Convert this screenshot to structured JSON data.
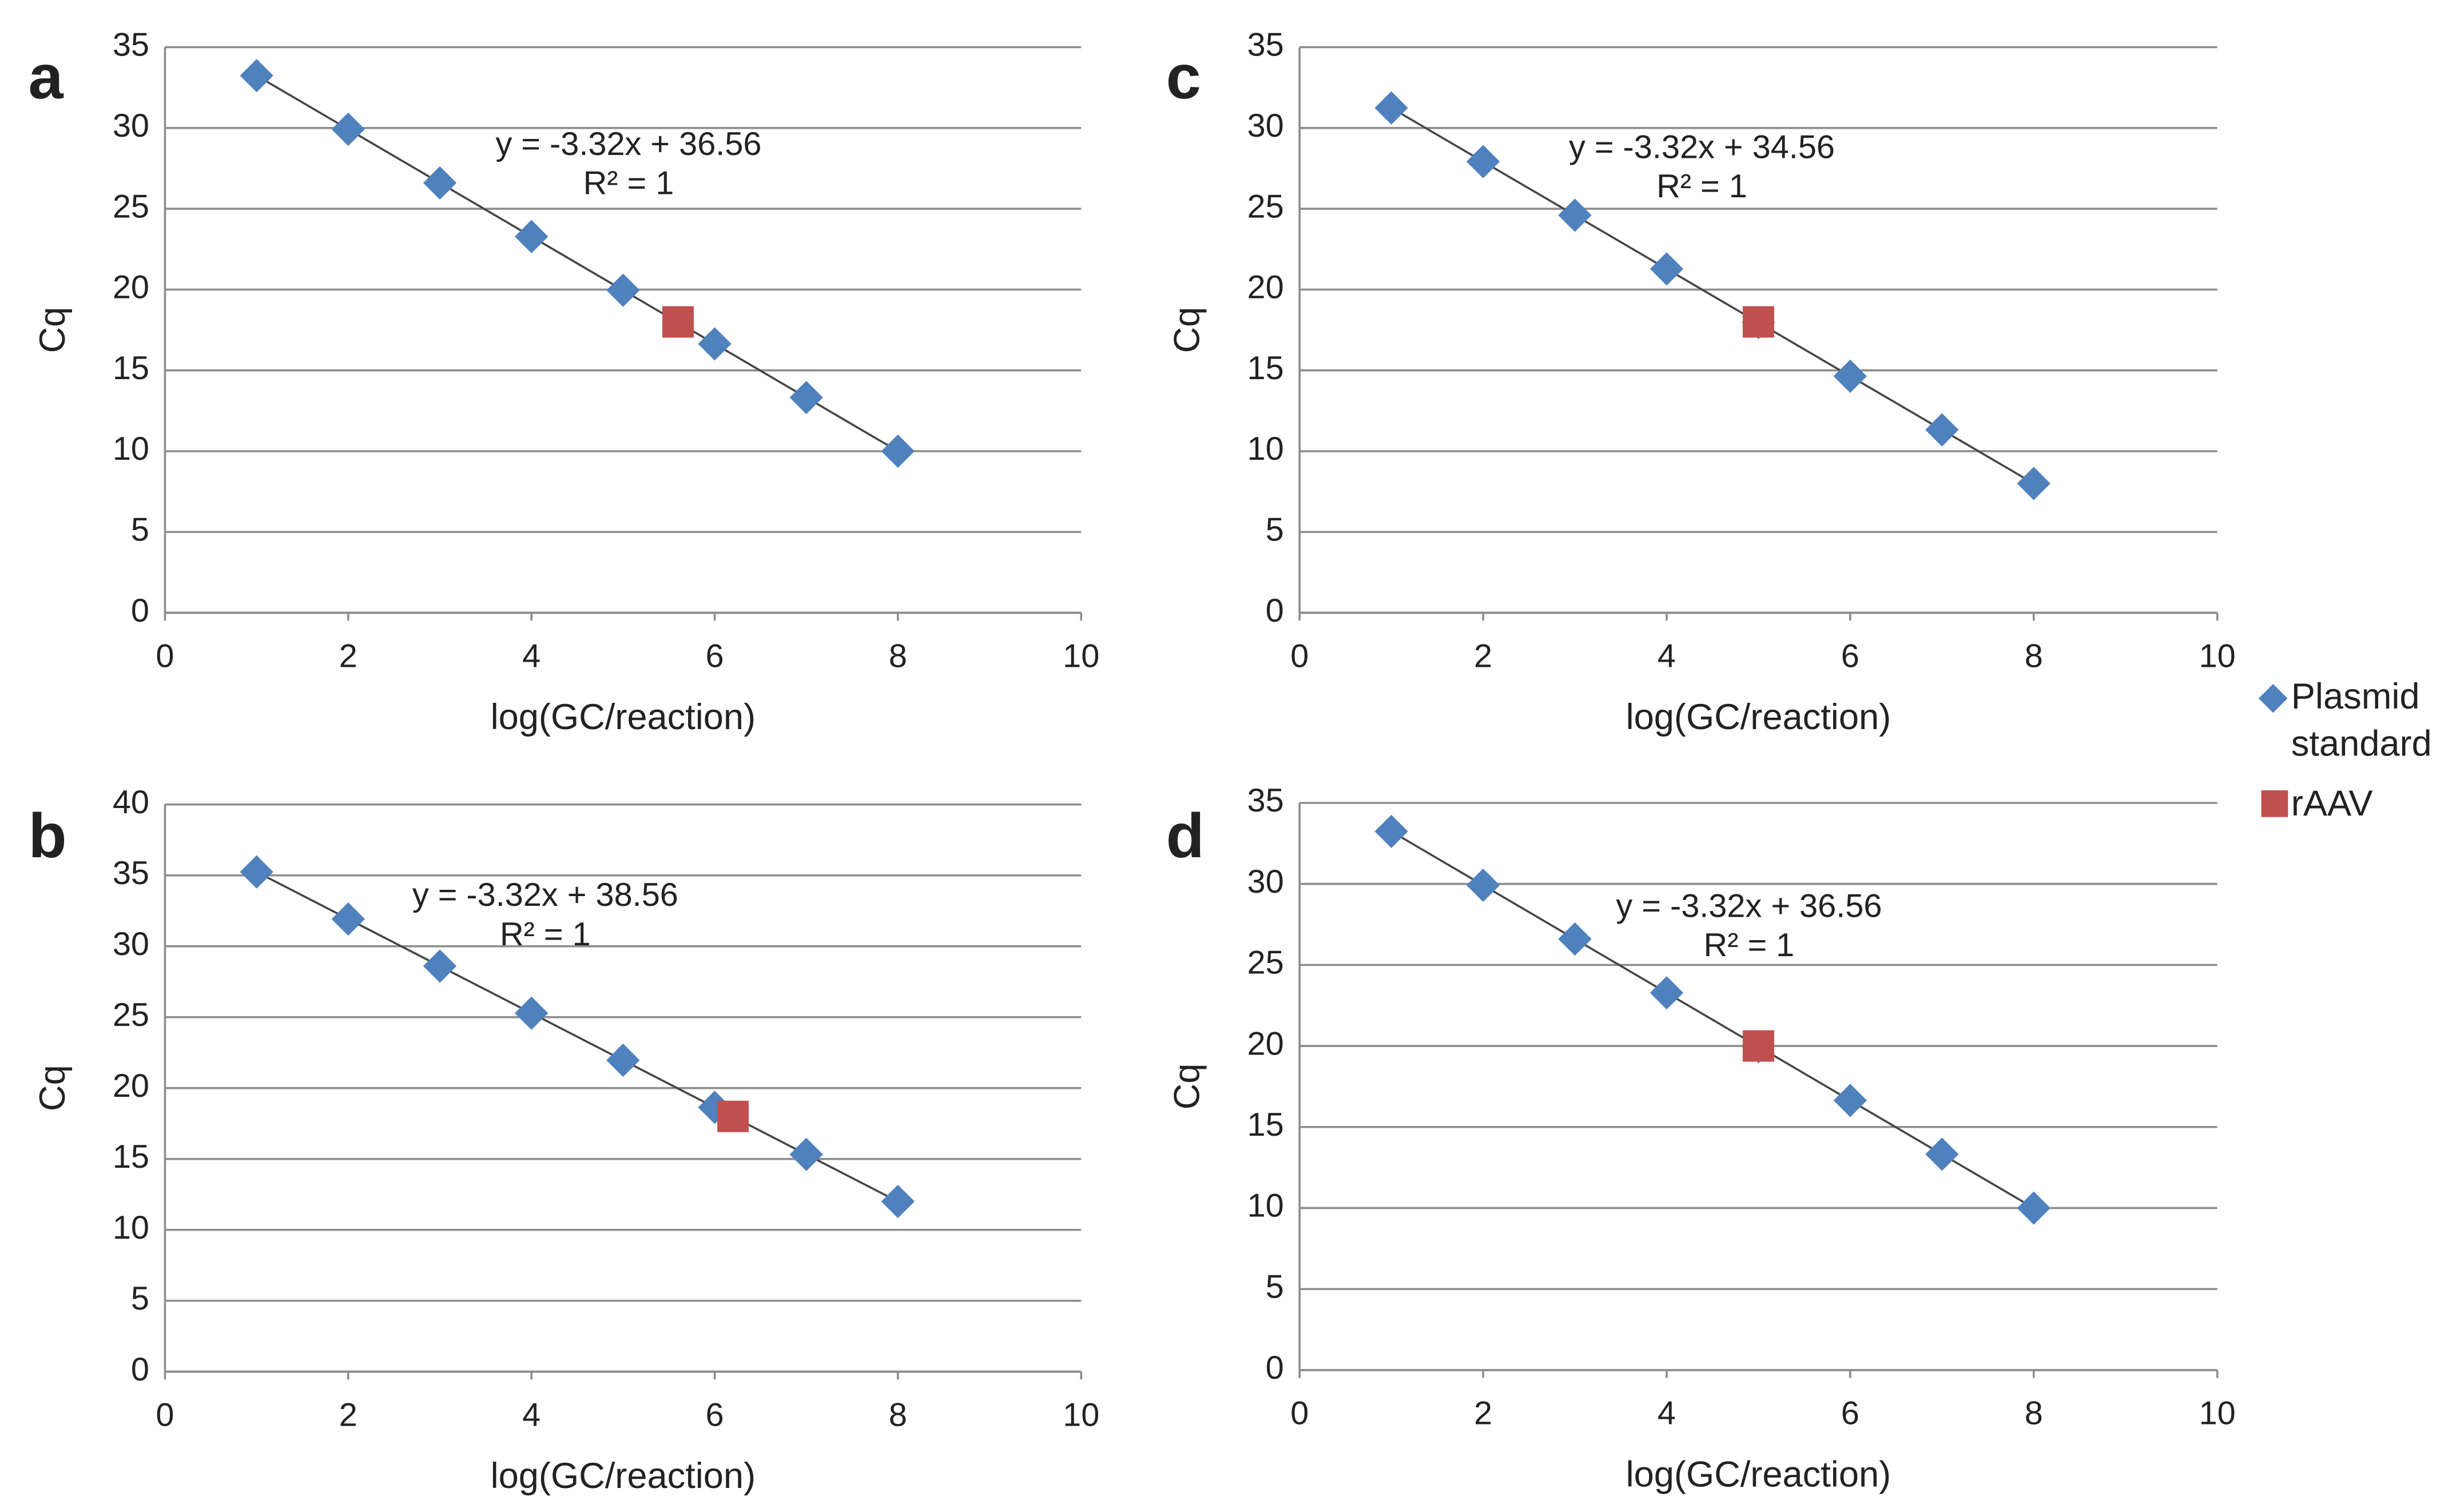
{
  "chart_data": [
    {
      "type": "scatter",
      "panel": "a",
      "xlabel": "log(GC/reaction)",
      "ylabel": "Cq",
      "equation": "y = -3.32x + 36.56",
      "r2": "R² = 1",
      "xlim": [
        0,
        10
      ],
      "xticks": [
        0,
        2,
        4,
        6,
        8,
        10
      ],
      "ylim": [
        0,
        35
      ],
      "yticks": [
        0,
        5,
        10,
        15,
        20,
        25,
        30,
        35
      ],
      "grid": true,
      "series": [
        {
          "name": "Plasmid standard",
          "color": "#4f81bd",
          "marker": "diamond",
          "x": [
            1,
            2,
            3,
            4,
            5,
            6,
            7,
            8
          ],
          "values": [
            33.24,
            29.92,
            26.6,
            23.28,
            19.96,
            16.64,
            13.32,
            10.0
          ]
        },
        {
          "name": "rAAV",
          "color": "#c0504d",
          "marker": "square",
          "x": [
            5.6
          ],
          "values": [
            18
          ]
        }
      ]
    },
    {
      "type": "scatter",
      "panel": "b",
      "xlabel": "log(GC/reaction)",
      "ylabel": "Cq",
      "equation": "y = -3.32x + 38.56",
      "r2": "R² = 1",
      "xlim": [
        0,
        10
      ],
      "xticks": [
        0,
        2,
        4,
        6,
        8,
        10
      ],
      "ylim": [
        0,
        40
      ],
      "yticks": [
        0,
        5,
        10,
        15,
        20,
        25,
        30,
        35,
        40
      ],
      "grid": true,
      "series": [
        {
          "name": "Plasmid standard",
          "color": "#4f81bd",
          "marker": "diamond",
          "x": [
            1,
            2,
            3,
            4,
            5,
            6,
            7,
            8
          ],
          "values": [
            35.24,
            31.92,
            28.6,
            25.28,
            21.96,
            18.64,
            15.32,
            12.0
          ]
        },
        {
          "name": "rAAV",
          "color": "#c0504d",
          "marker": "square",
          "x": [
            6.2
          ],
          "values": [
            18
          ]
        }
      ]
    },
    {
      "type": "scatter",
      "panel": "c",
      "xlabel": "log(GC/reaction)",
      "ylabel": "Cq",
      "equation": "y = -3.32x + 34.56",
      "r2": "R² = 1",
      "xlim": [
        0,
        10
      ],
      "xticks": [
        0,
        2,
        4,
        6,
        8,
        10
      ],
      "ylim": [
        0,
        35
      ],
      "yticks": [
        0,
        5,
        10,
        15,
        20,
        25,
        30,
        35
      ],
      "grid": true,
      "series": [
        {
          "name": "Plasmid standard",
          "color": "#4f81bd",
          "marker": "diamond",
          "x": [
            1,
            2,
            3,
            4,
            5,
            6,
            7,
            8
          ],
          "values": [
            31.24,
            27.92,
            24.6,
            21.28,
            17.96,
            14.64,
            11.32,
            8.0
          ]
        },
        {
          "name": "rAAV",
          "color": "#c0504d",
          "marker": "square",
          "x": [
            5
          ],
          "values": [
            18
          ]
        }
      ]
    },
    {
      "type": "scatter",
      "panel": "d",
      "xlabel": "log(GC/reaction)",
      "ylabel": "Cq",
      "equation": "y = -3.32x + 36.56",
      "r2": "R² = 1",
      "xlim": [
        0,
        10
      ],
      "xticks": [
        0,
        2,
        4,
        6,
        8,
        10
      ],
      "ylim": [
        0,
        35
      ],
      "yticks": [
        0,
        5,
        10,
        15,
        20,
        25,
        30,
        35
      ],
      "grid": true,
      "series": [
        {
          "name": "Plasmid standard",
          "color": "#4f81bd",
          "marker": "diamond",
          "x": [
            1,
            2,
            3,
            4,
            5,
            6,
            7,
            8
          ],
          "values": [
            33.24,
            29.92,
            26.6,
            23.28,
            19.96,
            16.64,
            13.32,
            10.0
          ]
        },
        {
          "name": "rAAV",
          "color": "#c0504d",
          "marker": "square",
          "x": [
            5
          ],
          "values": [
            20
          ]
        }
      ]
    }
  ]
}
